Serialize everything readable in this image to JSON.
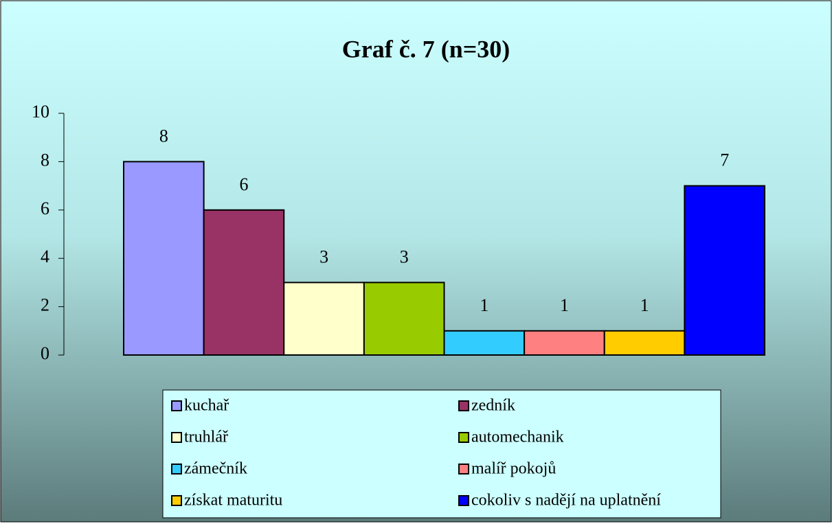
{
  "chart_data": {
    "type": "bar",
    "title": "Graf č. 7 (n=30)",
    "categories": [
      "kuchař",
      "zedník",
      "truhlář",
      "automechanik",
      "zámečník",
      "malíř pokojů",
      "získat maturitu",
      "cokoliv s nadějí na uplatnění"
    ],
    "values": [
      8,
      6,
      3,
      3,
      1,
      1,
      1,
      7
    ],
    "colors": [
      "#9999ff",
      "#993366",
      "#ffffcc",
      "#99cc00",
      "#33ccff",
      "#ff8080",
      "#ffcc00",
      "#0000ff"
    ],
    "ylim": [
      0,
      10
    ],
    "yticks": [
      0,
      2,
      4,
      6,
      8,
      10
    ],
    "grid": false,
    "legend": "bottom"
  }
}
